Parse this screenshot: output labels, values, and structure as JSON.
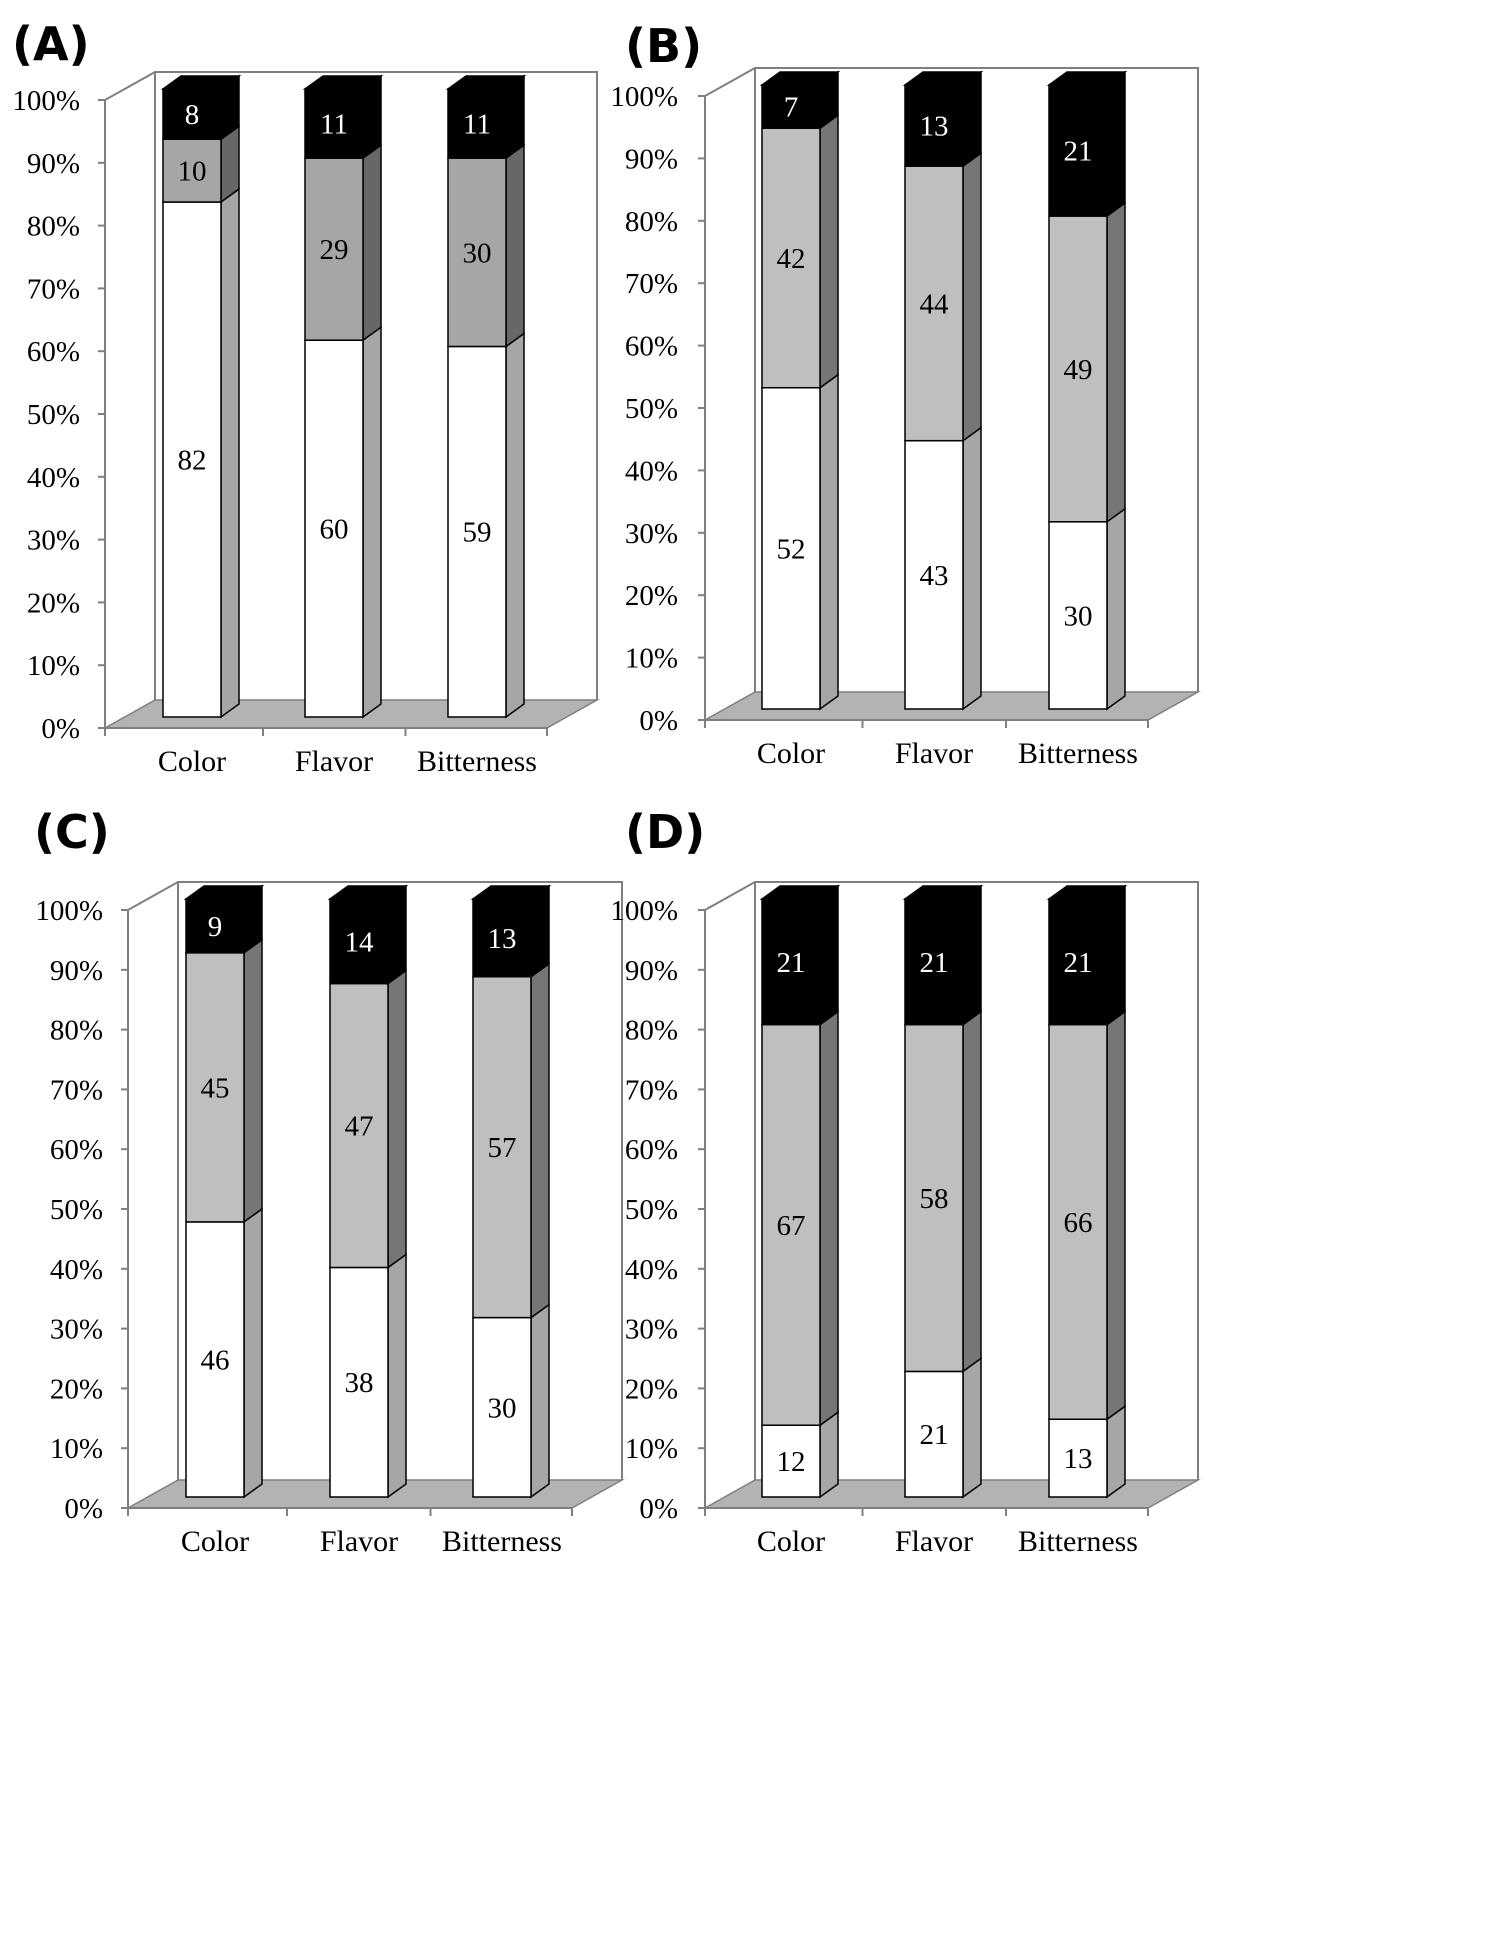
{
  "colors": {
    "bottom": "#ffffff",
    "middle_A": "#a6a6a6",
    "middle": "#bfbfbf",
    "top": "#000000",
    "floor": "#b3b3b3",
    "axis": "#7f7f7f"
  },
  "chart_data": [
    {
      "type": "bar",
      "stacked": true,
      "percent_stacked": true,
      "panel": "(A)",
      "categories": [
        "Color",
        "Flavor",
        "Bitterness"
      ],
      "series": [
        {
          "name": "bottom",
          "values": [
            82,
            60,
            59
          ]
        },
        {
          "name": "middle",
          "values": [
            10,
            29,
            30
          ]
        },
        {
          "name": "top",
          "values": [
            8,
            11,
            11
          ]
        }
      ],
      "ylim": [
        0,
        100
      ],
      "yticks": [
        "0%",
        "10%",
        "20%",
        "30%",
        "40%",
        "50%",
        "60%",
        "70%",
        "80%",
        "90%",
        "100%"
      ]
    },
    {
      "type": "bar",
      "stacked": true,
      "percent_stacked": true,
      "panel": "(B)",
      "categories": [
        "Color",
        "Flavor",
        "Bitterness"
      ],
      "series": [
        {
          "name": "bottom",
          "values": [
            52,
            43,
            30
          ]
        },
        {
          "name": "middle",
          "values": [
            42,
            44,
            49
          ]
        },
        {
          "name": "top",
          "values": [
            7,
            13,
            21
          ]
        }
      ],
      "ylim": [
        0,
        100
      ],
      "yticks": [
        "0%",
        "10%",
        "20%",
        "30%",
        "40%",
        "50%",
        "60%",
        "70%",
        "80%",
        "90%",
        "100%"
      ]
    },
    {
      "type": "bar",
      "stacked": true,
      "percent_stacked": true,
      "panel": "(C)",
      "categories": [
        "Color",
        "Flavor",
        "Bitterness"
      ],
      "series": [
        {
          "name": "bottom",
          "values": [
            46,
            38,
            30
          ]
        },
        {
          "name": "middle",
          "values": [
            45,
            47,
            57
          ]
        },
        {
          "name": "top",
          "values": [
            9,
            14,
            13
          ]
        }
      ],
      "ylim": [
        0,
        100
      ],
      "yticks": [
        "0%",
        "10%",
        "20%",
        "30%",
        "40%",
        "50%",
        "60%",
        "70%",
        "80%",
        "90%",
        "100%"
      ]
    },
    {
      "type": "bar",
      "stacked": true,
      "percent_stacked": true,
      "panel": "(D)",
      "categories": [
        "Color",
        "Flavor",
        "Bitterness"
      ],
      "series": [
        {
          "name": "bottom",
          "values": [
            12,
            21,
            13
          ]
        },
        {
          "name": "middle",
          "values": [
            67,
            58,
            66
          ]
        },
        {
          "name": "top",
          "values": [
            21,
            21,
            21
          ]
        }
      ],
      "ylim": [
        0,
        100
      ],
      "yticks": [
        "0%",
        "10%",
        "20%",
        "30%",
        "40%",
        "50%",
        "60%",
        "70%",
        "80%",
        "90%",
        "100%"
      ]
    }
  ]
}
